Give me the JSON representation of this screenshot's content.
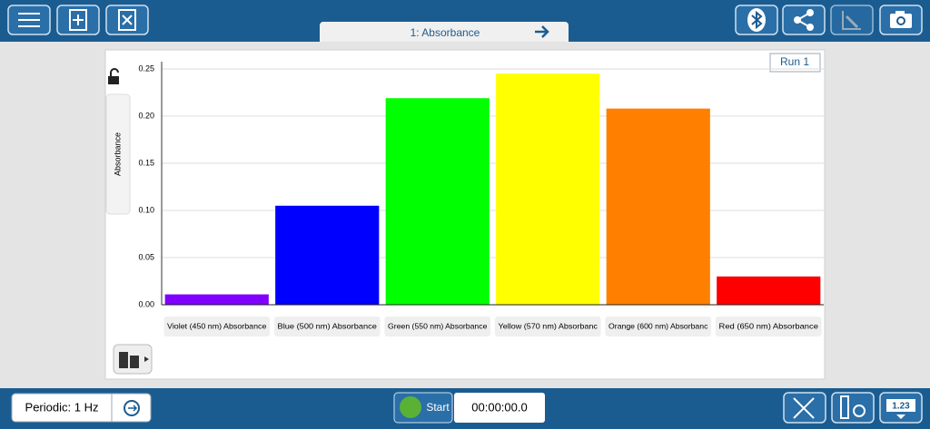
{
  "tab": {
    "title": "1: Absorbance"
  },
  "chart_data": {
    "type": "bar",
    "run_label": "Run 1",
    "y_label": "Absorbance",
    "categories": [
      "Violet (450 nm) Absorbance",
      "Blue (500 nm) Absorbance",
      "Green (550 nm) Absorbance",
      "Yellow (570 nm) Absorbanc",
      "Orange (600 nm) Absorbanc",
      "Red (650 nm) Absorbance"
    ],
    "values": [
      0.011,
      0.105,
      0.219,
      0.245,
      0.208,
      0.03
    ],
    "colors": [
      "#8000ff",
      "#0000ff",
      "#00ff00",
      "#ffff00",
      "#ff8000",
      "#ff0000"
    ],
    "ylim": [
      0,
      0.25
    ],
    "yticks": [
      {
        "value": 0,
        "label": "0.00"
      },
      0.05,
      {
        "value": 0.1,
        "label": "0.10"
      },
      0.15,
      {
        "value": 0.2,
        "label": "0.20"
      },
      0.25
    ],
    "grid": true
  },
  "footer": {
    "mode": "Periodic: 1 Hz",
    "start": "Start",
    "time": "00:00:00.0",
    "meter": "1.23"
  }
}
